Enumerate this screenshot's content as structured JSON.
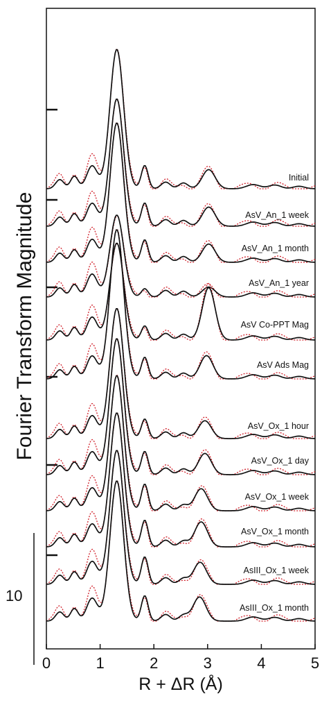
{
  "chart_data": {
    "type": "line",
    "title": "",
    "xlabel": "R + ΔR (Å)",
    "ylabel": "Fourier Transform Magnitude",
    "xlim": [
      0,
      5
    ],
    "x_ticks": [
      "0",
      "1",
      "2",
      "3",
      "4",
      "5"
    ],
    "scale_bar_label": "10",
    "grid": false,
    "legend": "none",
    "series_styles": {
      "data": {
        "color": "#111111",
        "dash": "solid"
      },
      "fit": {
        "color": "#d0202a",
        "dash": "dotted"
      }
    },
    "traces": [
      {
        "label": "Initial",
        "peaks": [
          {
            "r": 1.31,
            "h": 33.5
          },
          {
            "r": 1.83,
            "h": 5.6
          },
          {
            "r": 3.02,
            "h": 4.6
          }
        ],
        "low_r": [
          2.2,
          3.0,
          5.5
        ]
      },
      {
        "label": "AsV_An_1 week",
        "peaks": [
          {
            "r": 1.31,
            "h": 30.6
          },
          {
            "r": 1.83,
            "h": 5.6
          },
          {
            "r": 3.02,
            "h": 4.6
          }
        ],
        "low_r": [
          2.2,
          3.0,
          5.5
        ]
      },
      {
        "label": "AsV_An_1 month",
        "peaks": [
          {
            "r": 1.31,
            "h": 33.5
          },
          {
            "r": 1.83,
            "h": 5.4
          },
          {
            "r": 3.02,
            "h": 4.4
          }
        ],
        "low_r": [
          2.2,
          3.0,
          5.5
        ]
      },
      {
        "label": "AsV_An_1 year",
        "peaks": [
          {
            "r": 1.31,
            "h": 19.7
          },
          {
            "r": 1.83,
            "h": 2.0
          },
          {
            "r": 3.02,
            "h": 2.4
          }
        ],
        "low_r": [
          2.2,
          3.0,
          5.5
        ]
      },
      {
        "label": "AsV Co-PPT Mag",
        "peaks": [
          {
            "r": 1.31,
            "h": 23.3
          },
          {
            "r": 1.83,
            "h": 3.4
          },
          {
            "r": 3.02,
            "h": 12.6
          }
        ],
        "low_r": [
          2.2,
          3.0,
          5.5
        ]
      },
      {
        "label": "AsV Ads Mag",
        "peaks": [
          {
            "r": 1.31,
            "h": 35.9
          },
          {
            "r": 1.83,
            "h": 5.2
          },
          {
            "r": 2.98,
            "h": 5.6
          }
        ],
        "low_r": [
          2.2,
          3.0,
          5.5
        ]
      },
      {
        "label": "AsV_Ox_1 hour",
        "peaks": [
          {
            "r": 1.31,
            "h": 31.3
          },
          {
            "r": 1.83,
            "h": 4.7
          },
          {
            "r": 2.95,
            "h": 4.3
          }
        ],
        "low_r": [
          2.2,
          3.0,
          5.5
        ]
      },
      {
        "label": "AsV_Ox_1 day",
        "peaks": [
          {
            "r": 1.31,
            "h": 32.7
          },
          {
            "r": 1.83,
            "h": 5.6
          },
          {
            "r": 2.95,
            "h": 5.1
          }
        ],
        "low_r": [
          2.2,
          3.0,
          5.5
        ]
      },
      {
        "label": "AsV_Ox_1 week",
        "peaks": [
          {
            "r": 1.31,
            "h": 32.5
          },
          {
            "r": 1.83,
            "h": 6.4
          },
          {
            "r": 2.88,
            "h": 5.3
          }
        ],
        "low_r": [
          2.2,
          3.0,
          5.5
        ]
      },
      {
        "label": "AsV_Ox_1 month",
        "peaks": [
          {
            "r": 1.31,
            "h": 32.2
          },
          {
            "r": 1.83,
            "h": 6.4
          },
          {
            "r": 2.88,
            "h": 6.0
          }
        ],
        "low_r": [
          2.2,
          3.0,
          5.5
        ]
      },
      {
        "label": "AsIII_Ox_1 week",
        "peaks": [
          {
            "r": 1.31,
            "h": 32.2
          },
          {
            "r": 1.83,
            "h": 6.6
          },
          {
            "r": 2.86,
            "h": 5.3
          }
        ],
        "low_r": [
          2.2,
          3.0,
          5.5
        ]
      },
      {
        "label": "AsIII_Ox_1 month",
        "peaks": [
          {
            "r": 1.31,
            "h": 33.7
          },
          {
            "r": 1.83,
            "h": 6.1
          },
          {
            "r": 2.85,
            "h": 5.8
          }
        ],
        "low_r": [
          2.2,
          3.0,
          5.5
        ]
      }
    ]
  }
}
